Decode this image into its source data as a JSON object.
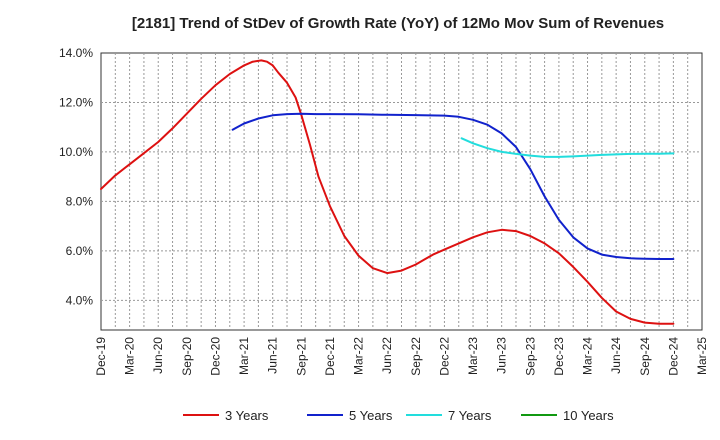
{
  "chart_data": {
    "type": "line",
    "title": "[2181]  Trend of StDev of Growth Rate (YoY) of 12Mo Mov Sum of Revenues",
    "xlabel": "",
    "ylabel": "",
    "ylim": [
      2.8,
      14.0
    ],
    "yticks": [
      4.0,
      6.0,
      8.0,
      10.0,
      12.0,
      14.0
    ],
    "ytick_labels": [
      "4.0%",
      "6.0%",
      "8.0%",
      "10.0%",
      "12.0%",
      "14.0%"
    ],
    "x_tick_labels": [
      "Dec-19",
      "Mar-20",
      "Jun-20",
      "Sep-20",
      "Dec-20",
      "Mar-21",
      "Jun-21",
      "Sep-21",
      "Dec-21",
      "Mar-22",
      "Jun-22",
      "Sep-22",
      "Dec-22",
      "Mar-23",
      "Jun-23",
      "Sep-23",
      "Dec-23",
      "Mar-24",
      "Jun-24",
      "Sep-24",
      "Dec-24",
      "Mar-25"
    ],
    "grid": true,
    "legend_position": "bottom",
    "series": [
      {
        "name": "3 Years",
        "color": "#dd1111",
        "x": [
          0,
          0.5,
          1,
          1.5,
          2,
          2.5,
          3,
          3.5,
          4,
          4.5,
          5,
          5.3,
          5.6,
          5.8,
          6,
          6.2,
          6.5,
          6.8,
          7,
          7.3,
          7.6,
          8,
          8.5,
          9,
          9.5,
          10,
          10.5,
          11,
          11.3,
          11.6,
          12,
          12.5,
          13,
          13.5,
          14,
          14.5,
          15,
          15.5,
          16,
          16.5,
          17,
          17.5,
          18,
          18.5,
          19,
          19.5,
          20
        ],
        "values": [
          8.5,
          9.05,
          9.5,
          9.95,
          10.4,
          10.95,
          11.55,
          12.15,
          12.7,
          13.15,
          13.5,
          13.65,
          13.7,
          13.65,
          13.5,
          13.2,
          12.8,
          12.2,
          11.5,
          10.3,
          9.0,
          7.8,
          6.6,
          5.8,
          5.3,
          5.1,
          5.2,
          5.45,
          5.65,
          5.85,
          6.05,
          6.3,
          6.55,
          6.75,
          6.85,
          6.8,
          6.6,
          6.3,
          5.9,
          5.35,
          4.75,
          4.1,
          3.55,
          3.25,
          3.1,
          3.05,
          3.05
        ]
      },
      {
        "name": "5 Years",
        "color": "#1122cc",
        "x": [
          4.6,
          5,
          5.5,
          6,
          6.5,
          7,
          7.5,
          8,
          9,
          10,
          11,
          12,
          12.5,
          13,
          13.5,
          14,
          14.5,
          15,
          15.5,
          16,
          16.5,
          17,
          17.5,
          18,
          18.5,
          19,
          19.5,
          20
        ],
        "values": [
          10.9,
          11.15,
          11.35,
          11.48,
          11.53,
          11.54,
          11.53,
          11.53,
          11.52,
          11.5,
          11.49,
          11.47,
          11.42,
          11.3,
          11.1,
          10.75,
          10.2,
          9.3,
          8.2,
          7.25,
          6.55,
          6.1,
          5.85,
          5.75,
          5.7,
          5.68,
          5.67,
          5.67
        ]
      },
      {
        "name": "7 Years",
        "color": "#22dddd",
        "x": [
          12.6,
          13,
          13.5,
          14,
          14.5,
          15,
          15.5,
          16,
          16.5,
          17,
          17.5,
          18,
          18.5,
          19,
          19.5,
          20
        ],
        "values": [
          10.55,
          10.35,
          10.15,
          10.0,
          9.92,
          9.85,
          9.8,
          9.8,
          9.82,
          9.85,
          9.88,
          9.9,
          9.92,
          9.93,
          9.93,
          9.94
        ]
      },
      {
        "name": "10 Years",
        "color": "#119911",
        "x": [],
        "values": []
      }
    ]
  }
}
